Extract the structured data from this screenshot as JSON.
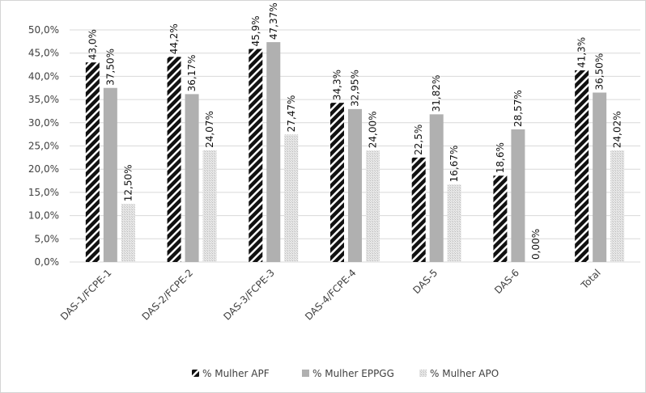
{
  "chart_data": {
    "type": "bar",
    "title": "",
    "xlabel": "",
    "ylabel": "",
    "categories": [
      "DAS-1/FCPE-1",
      "DAS-2/FCPE-2",
      "DAS-3/FCPE-3",
      "DAS-4/FCPE-4",
      "DAS-5",
      "DAS-6",
      "Total"
    ],
    "ylim": [
      0,
      50
    ],
    "y_ticks": [
      "0,0%",
      "5,0%",
      "10,0%",
      "15,0%",
      "20,0%",
      "25,0%",
      "30,0%",
      "35,0%",
      "40,0%",
      "45,0%",
      "50,0%"
    ],
    "grid": true,
    "legend_position": "bottom",
    "series": [
      {
        "name": "% Mulher APF",
        "pattern": "dark-diagonal-stripes",
        "color": "#111111",
        "values": [
          43.0,
          44.2,
          45.9,
          34.3,
          22.5,
          18.6,
          41.3
        ],
        "labels": [
          "43,0%",
          "44,2%",
          "45,9%",
          "34,3%",
          "22,5%",
          "18,6%",
          "41,3%"
        ]
      },
      {
        "name": "% Mulher EPPGG",
        "pattern": "solid-gray",
        "color": "#b0b0b0",
        "values": [
          37.5,
          36.17,
          47.37,
          32.95,
          31.82,
          28.57,
          36.5
        ],
        "labels": [
          "37,50%",
          "36,17%",
          "47,37%",
          "32,95%",
          "31,82%",
          "28,57%",
          "36,50%"
        ]
      },
      {
        "name": "% Mulher APO",
        "pattern": "light-dotted",
        "color": "#d8d8d8",
        "values": [
          12.5,
          24.07,
          27.47,
          24.0,
          16.67,
          0.0,
          24.02
        ],
        "labels": [
          "12,50%",
          "24,07%",
          "27,47%",
          "24,00%",
          "16,67%",
          "0,00%",
          "24,02%"
        ]
      }
    ]
  }
}
